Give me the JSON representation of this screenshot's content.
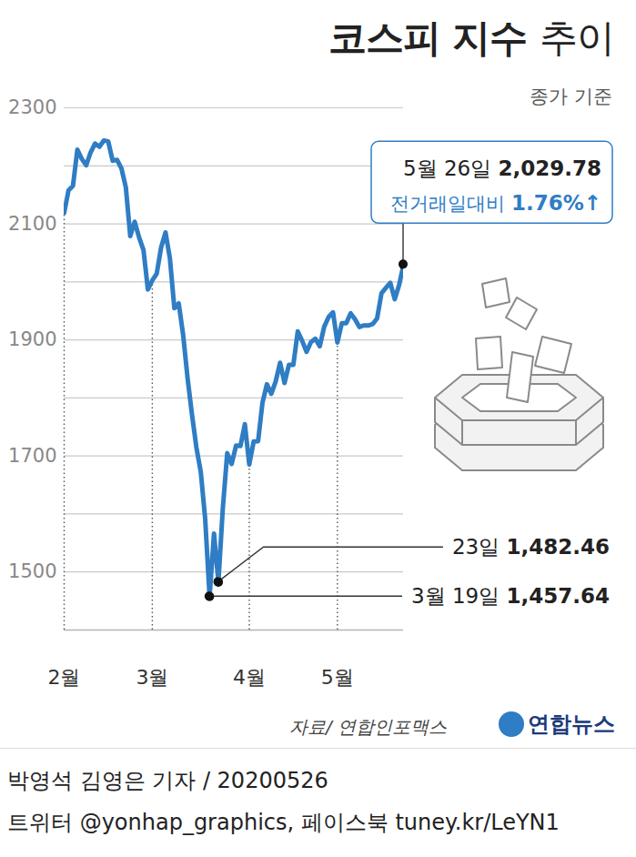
{
  "chart_data": {
    "type": "line",
    "title": "코스피 지수 추이",
    "subtitle": "종가 기준",
    "color": "#2f7dc4",
    "categories": [
      "2월",
      null,
      null,
      null,
      null,
      null,
      null,
      null,
      null,
      null,
      null,
      null,
      null,
      null,
      null,
      null,
      null,
      null,
      null,
      null,
      "3월",
      null,
      null,
      null,
      null,
      null,
      null,
      null,
      null,
      null,
      null,
      null,
      null,
      null,
      null,
      null,
      null,
      null,
      null,
      null,
      null,
      null,
      "4월",
      null,
      null,
      null,
      null,
      null,
      null,
      null,
      null,
      null,
      null,
      null,
      null,
      null,
      null,
      null,
      null,
      null,
      null,
      null,
      "5월",
      null,
      null,
      null,
      null,
      null,
      null,
      null,
      null,
      null,
      null,
      null,
      null,
      null,
      null,
      null
    ],
    "values": [
      2118.88,
      2157.9,
      2165.63,
      2227.94,
      2211.95,
      2201.07,
      2223.12,
      2238.38,
      2232.96,
      2243.59,
      2242.17,
      2208.88,
      2210.34,
      2195.5,
      2162.84,
      2079.04,
      2103.61,
      2076.77,
      2054.89,
      1987.01,
      2002.51,
      2014.15,
      2059.33,
      2085.26,
      2040.22,
      1954.77,
      1962.93,
      1908.27,
      1834.33,
      1771.44,
      1714.86,
      1672.44,
      1591.2,
      1457.64,
      1566.15,
      1482.46,
      1609.97,
      1704.76,
      1686.24,
      1717.73,
      1717.12,
      1754.64,
      1685.46,
      1724.86,
      1725.44,
      1791.88,
      1823.6,
      1807.14,
      1828.69,
      1860.7,
      1825.76,
      1857.08,
      1857.07,
      1914.53,
      1898.36,
      1879.38,
      1896.15,
      1902.0,
      1889.01,
      1922.77,
      1939.32,
      1947.56,
      1895.37,
      1928.76,
      1928.61,
      1945.82,
      1935.4,
      1922.17,
      1924.96,
      1924.82,
      1927.28,
      1937.11,
      1980.36,
      1989.64,
      1998.31,
      1970.13,
      1994.6,
      2029.78
    ],
    "ylim": [
      1400,
      2300
    ],
    "yticks": [
      1500,
      1700,
      1900,
      2100,
      2300
    ],
    "grid": true,
    "annotations": [
      {
        "label": "5월 26일",
        "value": 2029.78,
        "value_label": "2,029.78",
        "change_label": "전거래일대비",
        "change": 1.76,
        "change_value_label": "1.76%↑"
      },
      {
        "label": "23일",
        "value": 1482.46,
        "value_label": "1,482.46"
      },
      {
        "label": "3월 19일",
        "value": 1457.64,
        "value_label": "1,457.64"
      }
    ],
    "source": "자료/ 연합인포맥스",
    "credit": "연합뉴스",
    "byline": "박영석 김영은 기자 / 20200526",
    "footer": "트위터 @yonhap_graphics, 페이스북 tuney.kr/LeYN1"
  }
}
